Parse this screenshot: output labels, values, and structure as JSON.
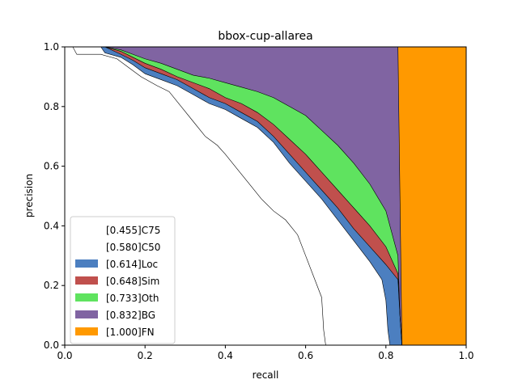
{
  "chart_data": {
    "type": "area",
    "title": "bbox-cup-allarea",
    "xlabel": "recall",
    "ylabel": "precision",
    "xlim": [
      0,
      1
    ],
    "ylim": [
      0,
      1
    ],
    "xticks": [
      "0.0",
      "0.2",
      "0.4",
      "0.6",
      "0.8",
      "1.0"
    ],
    "yticks": [
      "0.0",
      "0.2",
      "0.4",
      "0.6",
      "0.8",
      "1.0"
    ],
    "grid": false,
    "legend_position": "lower-left",
    "series": [
      {
        "name": "[0.455]C75",
        "color": "#ffffff",
        "points": [
          [
            0,
            1
          ],
          [
            0.02,
            1
          ],
          [
            0.03,
            0.975
          ],
          [
            0.09,
            0.975
          ],
          [
            0.13,
            0.96
          ],
          [
            0.16,
            0.93
          ],
          [
            0.19,
            0.9
          ],
          [
            0.23,
            0.87
          ],
          [
            0.26,
            0.85
          ],
          [
            0.29,
            0.8
          ],
          [
            0.32,
            0.75
          ],
          [
            0.35,
            0.7
          ],
          [
            0.38,
            0.67
          ],
          [
            0.4,
            0.64
          ],
          [
            0.43,
            0.59
          ],
          [
            0.46,
            0.54
          ],
          [
            0.49,
            0.49
          ],
          [
            0.52,
            0.45
          ],
          [
            0.55,
            0.42
          ],
          [
            0.58,
            0.37
          ],
          [
            0.6,
            0.3
          ],
          [
            0.62,
            0.23
          ],
          [
            0.64,
            0.16
          ],
          [
            0.645,
            0.05
          ],
          [
            0.65,
            0
          ]
        ]
      },
      {
        "name": "[0.580]C50",
        "color": "#ffffff",
        "points": [
          [
            0,
            1
          ],
          [
            0.09,
            1
          ],
          [
            0.1,
            0.98
          ],
          [
            0.14,
            0.965
          ],
          [
            0.17,
            0.94
          ],
          [
            0.2,
            0.91
          ],
          [
            0.24,
            0.89
          ],
          [
            0.28,
            0.87
          ],
          [
            0.32,
            0.84
          ],
          [
            0.36,
            0.81
          ],
          [
            0.4,
            0.79
          ],
          [
            0.44,
            0.76
          ],
          [
            0.48,
            0.73
          ],
          [
            0.52,
            0.68
          ],
          [
            0.56,
            0.61
          ],
          [
            0.6,
            0.55
          ],
          [
            0.64,
            0.49
          ],
          [
            0.68,
            0.42
          ],
          [
            0.72,
            0.35
          ],
          [
            0.76,
            0.28
          ],
          [
            0.79,
            0.22
          ],
          [
            0.8,
            0.15
          ],
          [
            0.805,
            0.05
          ],
          [
            0.81,
            0
          ]
        ]
      },
      {
        "name": "[0.614]Loc",
        "color": "#4c7fc0",
        "points": [
          [
            0,
            1
          ],
          [
            0.1,
            1
          ],
          [
            0.14,
            0.975
          ],
          [
            0.17,
            0.955
          ],
          [
            0.2,
            0.93
          ],
          [
            0.24,
            0.91
          ],
          [
            0.28,
            0.89
          ],
          [
            0.32,
            0.86
          ],
          [
            0.36,
            0.83
          ],
          [
            0.4,
            0.81
          ],
          [
            0.44,
            0.78
          ],
          [
            0.48,
            0.75
          ],
          [
            0.52,
            0.7
          ],
          [
            0.56,
            0.64
          ],
          [
            0.6,
            0.58
          ],
          [
            0.64,
            0.52
          ],
          [
            0.68,
            0.46
          ],
          [
            0.72,
            0.39
          ],
          [
            0.76,
            0.33
          ],
          [
            0.8,
            0.27
          ],
          [
            0.83,
            0.22
          ],
          [
            0.835,
            0.1
          ],
          [
            0.84,
            0
          ]
        ]
      },
      {
        "name": "[0.648]Sim",
        "color": "#c0504d",
        "points": [
          [
            0,
            1
          ],
          [
            0.1,
            1
          ],
          [
            0.14,
            0.985
          ],
          [
            0.17,
            0.965
          ],
          [
            0.2,
            0.945
          ],
          [
            0.24,
            0.925
          ],
          [
            0.28,
            0.9
          ],
          [
            0.32,
            0.88
          ],
          [
            0.36,
            0.86
          ],
          [
            0.4,
            0.83
          ],
          [
            0.44,
            0.81
          ],
          [
            0.48,
            0.78
          ],
          [
            0.52,
            0.74
          ],
          [
            0.56,
            0.69
          ],
          [
            0.6,
            0.64
          ],
          [
            0.64,
            0.58
          ],
          [
            0.68,
            0.52
          ],
          [
            0.72,
            0.46
          ],
          [
            0.76,
            0.4
          ],
          [
            0.8,
            0.33
          ],
          [
            0.83,
            0.24
          ],
          [
            0.835,
            0.1
          ],
          [
            0.84,
            0
          ]
        ]
      },
      {
        "name": "[0.733]Oth",
        "color": "#5fe35f",
        "points": [
          [
            0,
            1
          ],
          [
            0.1,
            1
          ],
          [
            0.14,
            0.99
          ],
          [
            0.17,
            0.975
          ],
          [
            0.2,
            0.96
          ],
          [
            0.24,
            0.945
          ],
          [
            0.28,
            0.925
          ],
          [
            0.32,
            0.905
          ],
          [
            0.36,
            0.895
          ],
          [
            0.4,
            0.88
          ],
          [
            0.44,
            0.865
          ],
          [
            0.48,
            0.85
          ],
          [
            0.52,
            0.83
          ],
          [
            0.56,
            0.8
          ],
          [
            0.6,
            0.77
          ],
          [
            0.64,
            0.72
          ],
          [
            0.68,
            0.67
          ],
          [
            0.72,
            0.61
          ],
          [
            0.76,
            0.54
          ],
          [
            0.8,
            0.45
          ],
          [
            0.83,
            0.3
          ],
          [
            0.835,
            0.1
          ],
          [
            0.84,
            0
          ]
        ]
      },
      {
        "name": "[0.832]BG",
        "color": "#8064a2",
        "points": [
          [
            0,
            1
          ],
          [
            0.83,
            1
          ],
          [
            0.835,
            0.5
          ],
          [
            0.84,
            0
          ]
        ]
      },
      {
        "name": "[1.000]FN",
        "color": "#ff9900",
        "points": [
          [
            0,
            1
          ],
          [
            1,
            1
          ],
          [
            1,
            0
          ]
        ]
      }
    ]
  }
}
